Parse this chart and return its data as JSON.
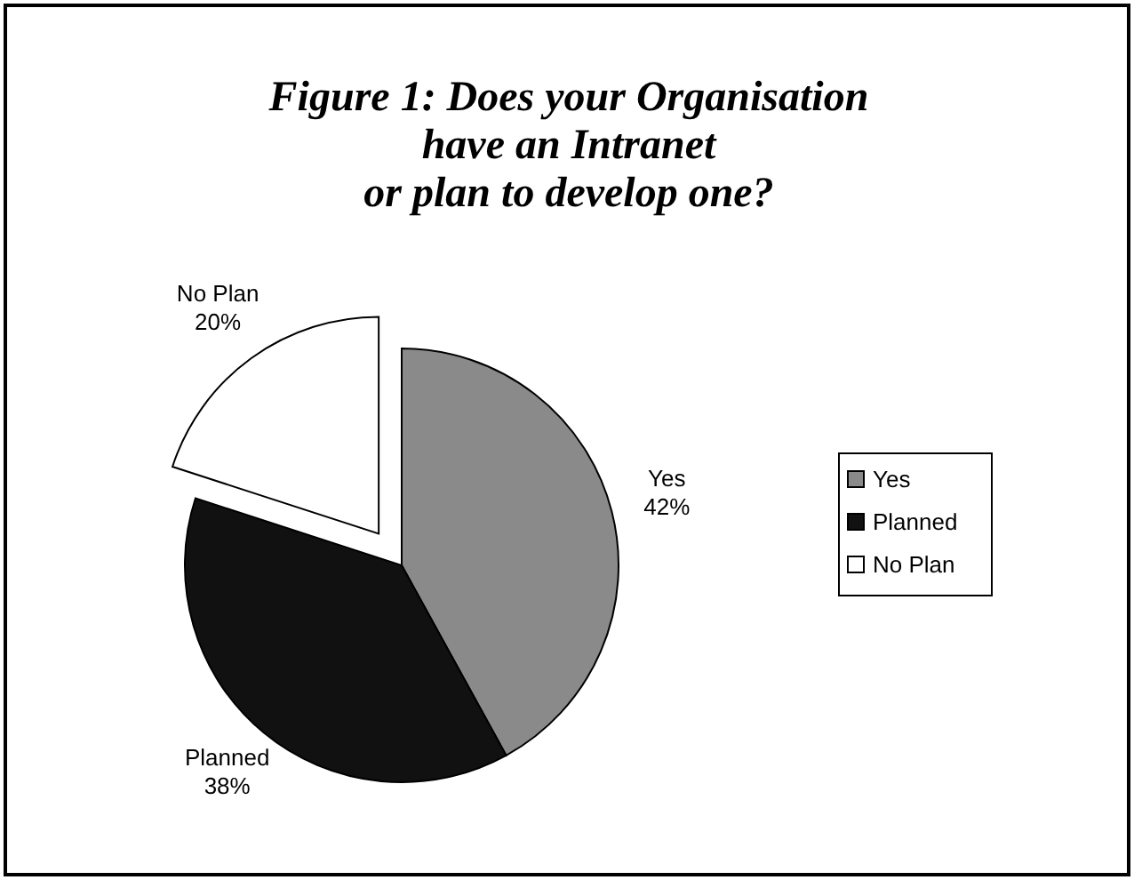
{
  "chart_data": {
    "type": "pie",
    "title": "Figure 1: Does your Organisation\nhave an Intranet\nor plan to develop one?",
    "categories": [
      "Yes",
      "Planned",
      "No Plan"
    ],
    "values": [
      42,
      38,
      20
    ],
    "value_labels": [
      "42%",
      "38%",
      "20%"
    ],
    "colors": [
      "#8a8a8a",
      "#111111",
      "#ffffff"
    ],
    "legend": "right"
  }
}
